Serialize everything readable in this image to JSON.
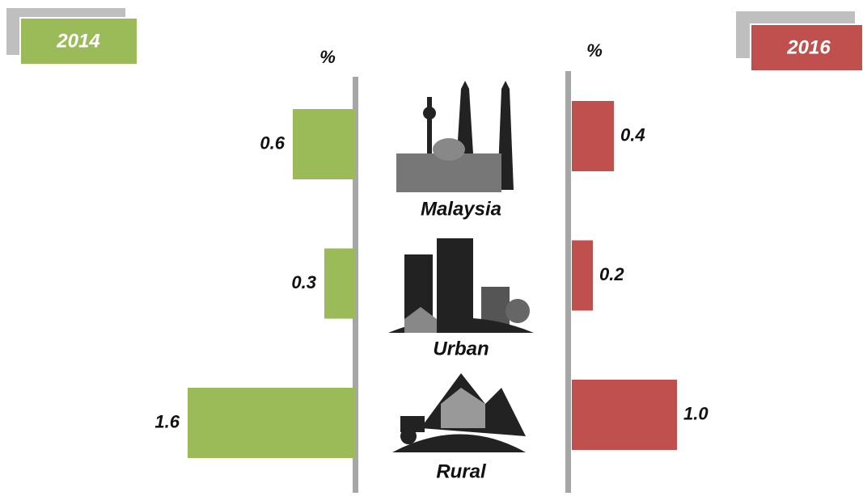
{
  "chart_data": {
    "type": "butterfly",
    "categories": [
      "Malaysia",
      "Urban",
      "Rural"
    ],
    "series": [
      {
        "name": "2014",
        "color": "#9bbb59",
        "unit": "%",
        "values": [
          0.6,
          0.3,
          1.6
        ],
        "value_labels": [
          "0.6",
          "0.3",
          "1.6"
        ]
      },
      {
        "name": "2016",
        "color": "#c0504d",
        "unit": "%",
        "values": [
          0.4,
          0.2,
          1.0
        ],
        "value_labels": [
          "0.4",
          "0.2",
          "1.0"
        ]
      }
    ]
  }
}
